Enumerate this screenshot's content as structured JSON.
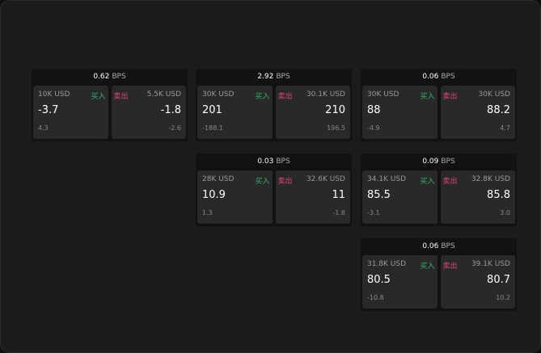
{
  "colors": {
    "buy": "#2fb36a",
    "sell": "#e0457a"
  },
  "labels": {
    "unit": "BPS",
    "buy": "买入",
    "sell": "卖出"
  },
  "cards": [
    {
      "spread": "0.62",
      "bid": {
        "size": "10K USD",
        "price": "-3.7",
        "change": "4.3"
      },
      "ask": {
        "size": "5.5K USD",
        "price": "-1.8",
        "change": "-2.6"
      }
    },
    {
      "spread": "2.92",
      "bid": {
        "size": "30K USD",
        "price": "201",
        "change": "-188.1"
      },
      "ask": {
        "size": "30.1K USD",
        "price": "210",
        "change": "196.5"
      }
    },
    {
      "spread": "0.06",
      "bid": {
        "size": "30K USD",
        "price": "88",
        "change": "-4.9"
      },
      "ask": {
        "size": "30K USD",
        "price": "88.2",
        "change": "4.7"
      }
    },
    {
      "spread": "0.03",
      "bid": {
        "size": "28K USD",
        "price": "10.9",
        "change": "1.3"
      },
      "ask": {
        "size": "32.6K USD",
        "price": "11",
        "change": "-1.8"
      }
    },
    {
      "spread": "0.09",
      "bid": {
        "size": "34.1K USD",
        "price": "85.5",
        "change": "-3.1"
      },
      "ask": {
        "size": "32.8K USD",
        "price": "85.8",
        "change": "3.0"
      }
    },
    {
      "spread": "0.06",
      "bid": {
        "size": "31.8K USD",
        "price": "80.5",
        "change": "-10.8"
      },
      "ask": {
        "size": "39.1K USD",
        "price": "80.7",
        "change": "10.2"
      }
    }
  ]
}
